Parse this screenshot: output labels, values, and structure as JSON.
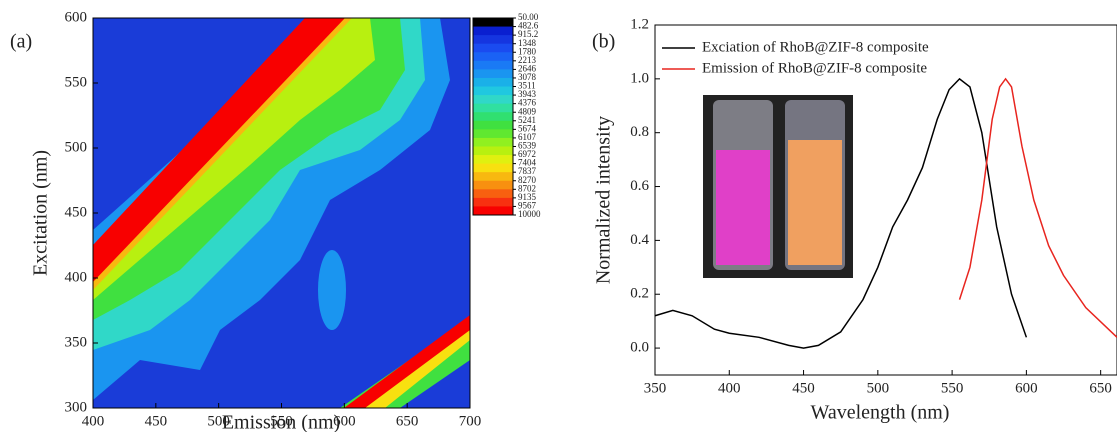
{
  "chart_data": [
    {
      "type": "contour",
      "panel_label": "(a)",
      "xlabel": "Emission (nm)",
      "ylabel": "Excitation (nm)",
      "xlim": [
        400,
        700
      ],
      "ylim": [
        300,
        600
      ],
      "xticks": [
        400,
        450,
        500,
        550,
        600,
        650,
        700
      ],
      "yticks": [
        300,
        350,
        400,
        450,
        500,
        550,
        600
      ],
      "colorbar": {
        "levels": [
          {
            "value": 50,
            "label": "50.00"
          },
          482.6,
          915.2,
          1348,
          1780,
          2213,
          2646,
          3078,
          3511,
          3943,
          4376,
          4809,
          5241,
          5674,
          6107,
          6539,
          6972,
          7404,
          7837,
          8270,
          8702,
          9135,
          9567,
          10000
        ],
        "colors": [
          "#000000",
          "#0a1fd0",
          "#1535e0",
          "#1a4bf0",
          "#1a62f5",
          "#1a7af5",
          "#1a95f0",
          "#1ab0e8",
          "#20c8e0",
          "#30d8c8",
          "#30e0a0",
          "#30e070",
          "#40e040",
          "#60e830",
          "#90f020",
          "#b8f010",
          "#e0f010",
          "#f8e010",
          "#f8b810",
          "#f89010",
          "#f86010",
          "#f83010",
          "#f80000"
        ]
      }
    },
    {
      "type": "line",
      "panel_label": "(b)",
      "xlabel": "Wavelength (nm)",
      "ylabel": "Normalized intensity",
      "xlim": [
        350,
        661
      ],
      "ylim": [
        -0.1,
        1.2
      ],
      "xticks": [
        350,
        400,
        450,
        500,
        550,
        600,
        650
      ],
      "yticks": [
        {
          "value": 0,
          "label": "0.0"
        },
        0.2,
        0.4,
        0.6,
        0.8,
        {
          "value": 1,
          "label": "1.0"
        },
        1.2
      ],
      "legend": "upper left",
      "series": [
        {
          "name": "Exciation of RhoB@ZIF-8 composite",
          "color": "#000000",
          "x": [
            350,
            362,
            375,
            390,
            400,
            420,
            440,
            450,
            460,
            475,
            490,
            500,
            510,
            520,
            530,
            540,
            548,
            555,
            562,
            570,
            580,
            590,
            600
          ],
          "values": [
            0.12,
            0.14,
            0.12,
            0.07,
            0.055,
            0.04,
            0.01,
            0.0,
            0.01,
            0.06,
            0.18,
            0.3,
            0.45,
            0.55,
            0.67,
            0.85,
            0.96,
            1.0,
            0.97,
            0.8,
            0.45,
            0.2,
            0.04
          ]
        },
        {
          "name": "Emission of RhoB@ZIF-8 composite",
          "color": "#e8251f",
          "x": [
            555,
            562,
            570,
            577,
            582,
            586,
            590,
            597,
            605,
            615,
            625,
            640,
            661
          ],
          "values": [
            0.18,
            0.3,
            0.55,
            0.85,
            0.97,
            1.0,
            0.97,
            0.75,
            0.55,
            0.38,
            0.27,
            0.15,
            0.04
          ]
        }
      ]
    }
  ]
}
